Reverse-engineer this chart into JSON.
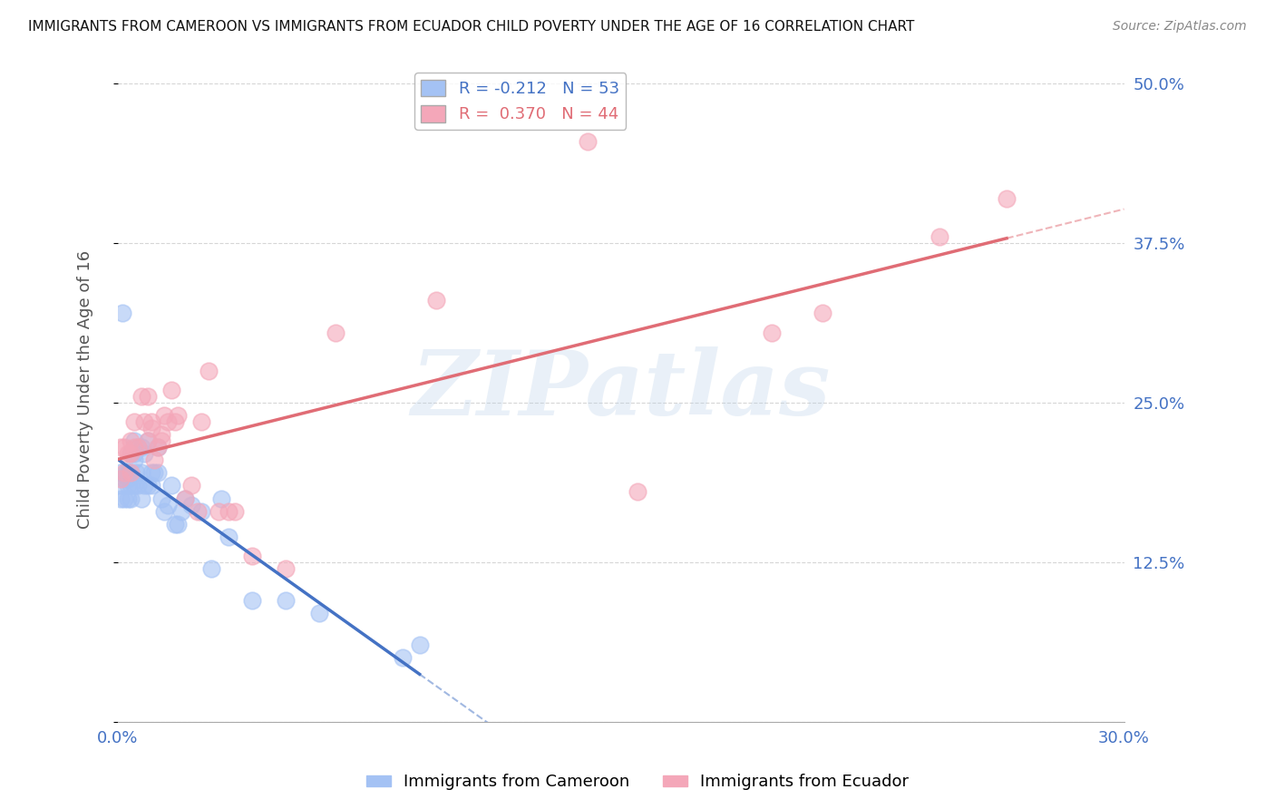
{
  "title": "IMMIGRANTS FROM CAMEROON VS IMMIGRANTS FROM ECUADOR CHILD POVERTY UNDER THE AGE OF 16 CORRELATION CHART",
  "source": "Source: ZipAtlas.com",
  "ylabel": "Child Poverty Under the Age of 16",
  "xlim": [
    0,
    0.3
  ],
  "ylim": [
    0.0,
    0.52
  ],
  "yticks": [
    0.0,
    0.125,
    0.25,
    0.375,
    0.5
  ],
  "ytick_labels": [
    "",
    "12.5%",
    "25.0%",
    "37.5%",
    "50.0%"
  ],
  "xticks": [
    0.0,
    0.3
  ],
  "xtick_labels": [
    "0.0%",
    "30.0%"
  ],
  "watermark": "ZIPatlas",
  "legend_entries": [
    {
      "label": "R = -0.212   N = 53",
      "color": "#a4c2f4"
    },
    {
      "label": "R =  0.370   N = 44",
      "color": "#f4a7b9"
    }
  ],
  "cameroon_x": [
    0.001,
    0.001,
    0.001,
    0.0015,
    0.002,
    0.002,
    0.0025,
    0.003,
    0.003,
    0.003,
    0.003,
    0.0035,
    0.004,
    0.004,
    0.004,
    0.004,
    0.005,
    0.005,
    0.005,
    0.005,
    0.0055,
    0.006,
    0.006,
    0.007,
    0.007,
    0.007,
    0.008,
    0.008,
    0.009,
    0.009,
    0.01,
    0.01,
    0.011,
    0.012,
    0.012,
    0.013,
    0.014,
    0.015,
    0.016,
    0.017,
    0.018,
    0.019,
    0.02,
    0.022,
    0.025,
    0.028,
    0.031,
    0.033,
    0.04,
    0.05,
    0.06,
    0.085,
    0.09
  ],
  "cameroon_y": [
    0.195,
    0.175,
    0.185,
    0.32,
    0.19,
    0.175,
    0.195,
    0.19,
    0.195,
    0.185,
    0.175,
    0.195,
    0.21,
    0.195,
    0.185,
    0.175,
    0.22,
    0.21,
    0.205,
    0.185,
    0.195,
    0.215,
    0.185,
    0.215,
    0.195,
    0.175,
    0.21,
    0.185,
    0.22,
    0.185,
    0.195,
    0.185,
    0.195,
    0.215,
    0.195,
    0.175,
    0.165,
    0.17,
    0.185,
    0.155,
    0.155,
    0.165,
    0.175,
    0.17,
    0.165,
    0.12,
    0.175,
    0.145,
    0.095,
    0.095,
    0.085,
    0.05,
    0.06
  ],
  "ecuador_x": [
    0.001,
    0.001,
    0.002,
    0.002,
    0.003,
    0.004,
    0.004,
    0.004,
    0.005,
    0.005,
    0.006,
    0.007,
    0.008,
    0.009,
    0.009,
    0.01,
    0.01,
    0.011,
    0.012,
    0.013,
    0.013,
    0.014,
    0.015,
    0.016,
    0.017,
    0.018,
    0.02,
    0.022,
    0.024,
    0.025,
    0.027,
    0.03,
    0.033,
    0.035,
    0.04,
    0.05,
    0.065,
    0.095,
    0.14,
    0.155,
    0.195,
    0.21,
    0.245,
    0.265
  ],
  "ecuador_y": [
    0.19,
    0.215,
    0.195,
    0.215,
    0.21,
    0.22,
    0.195,
    0.21,
    0.235,
    0.215,
    0.215,
    0.255,
    0.235,
    0.22,
    0.255,
    0.235,
    0.23,
    0.205,
    0.215,
    0.22,
    0.225,
    0.24,
    0.235,
    0.26,
    0.235,
    0.24,
    0.175,
    0.185,
    0.165,
    0.235,
    0.275,
    0.165,
    0.165,
    0.165,
    0.13,
    0.12,
    0.305,
    0.33,
    0.455,
    0.18,
    0.305,
    0.32,
    0.38,
    0.41
  ],
  "cameroon_color": "#a4c2f4",
  "ecuador_color": "#f4a7b9",
  "cameroon_line_color": "#4472c4",
  "ecuador_line_color": "#e06c75",
  "bg_color": "#ffffff",
  "grid_color": "#cccccc",
  "title_color": "#111111",
  "axis_label_color": "#555555",
  "right_tick_color": "#4472c4",
  "bottom_tick_color": "#4472c4"
}
